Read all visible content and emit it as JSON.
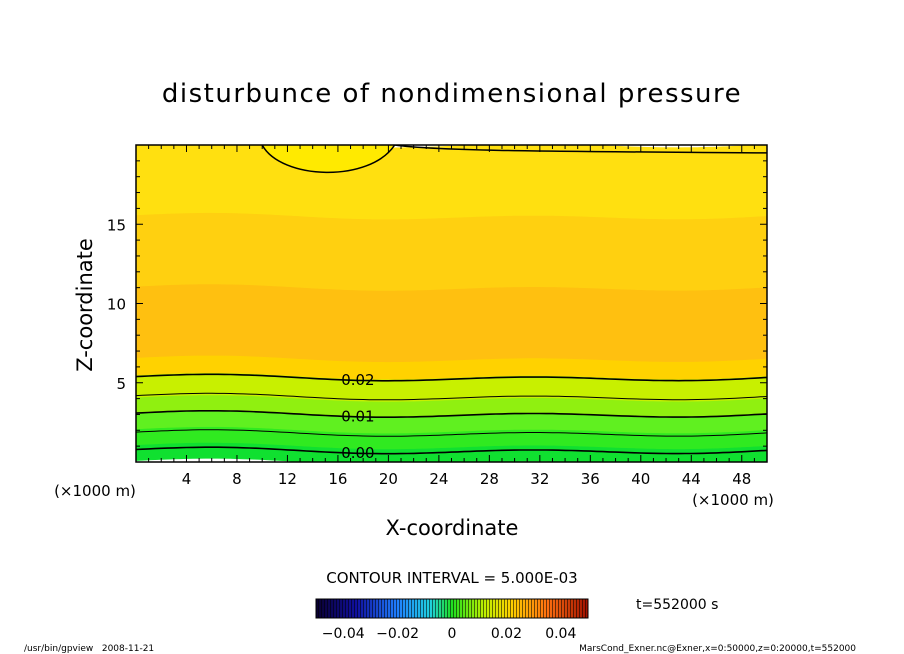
{
  "chart_data": {
    "type": "heatmap",
    "title": "disturbunce of nondimensional pressure",
    "xlabel": "X-coordinate",
    "ylabel": "Z-coordinate",
    "x_unit_left": "(×1000 m)",
    "x_unit_right": "(×1000 m)",
    "xlim": [
      0,
      50
    ],
    "ylim": [
      0,
      20
    ],
    "x_ticks": [
      4,
      8,
      12,
      16,
      20,
      24,
      28,
      32,
      36,
      40,
      44,
      48
    ],
    "y_ticks": [
      5,
      10,
      15
    ],
    "contour_labels": [
      {
        "text": "0.02",
        "x": 16,
        "z": 5.3
      },
      {
        "text": "0.01",
        "x": 16,
        "z": 3.0
      },
      {
        "text": "0.00",
        "x": 16,
        "z": 0.7
      }
    ],
    "bands": [
      {
        "z_from": 0.0,
        "z_to": 1.0,
        "color": "#10e030"
      },
      {
        "z_from": 1.0,
        "z_to": 2.0,
        "color": "#30ea20"
      },
      {
        "z_from": 2.0,
        "z_to": 3.0,
        "color": "#60f020"
      },
      {
        "z_from": 3.0,
        "z_to": 4.0,
        "color": "#90f010"
      },
      {
        "z_from": 4.0,
        "z_to": 5.4,
        "color": "#c8f000"
      },
      {
        "z_from": 5.4,
        "z_to": 6.5,
        "color": "#ffd200"
      },
      {
        "z_from": 6.5,
        "z_to": 11.0,
        "color": "#ffc010"
      },
      {
        "z_from": 11.0,
        "z_to": 15.5,
        "color": "#ffd010"
      },
      {
        "z_from": 15.5,
        "z_to": 20.0,
        "color": "#ffe010"
      }
    ],
    "contour_interval_text": "CONTOUR INTERVAL = 5.000E-03",
    "colorbar": {
      "range": [
        -0.05,
        0.05
      ],
      "tick_labels": [
        "−0.04",
        "−0.02",
        "0",
        "0.02",
        "0.04"
      ],
      "tick_values": [
        -0.04,
        -0.02,
        0,
        0.02,
        0.04
      ]
    },
    "time_label": "t=552000 s",
    "footer_left": "/usr/bin/gpview   2008-11-21",
    "footer_right": "MarsCond_Exner.nc@Exner,x=0:50000,z=0:20000,t=552000"
  }
}
